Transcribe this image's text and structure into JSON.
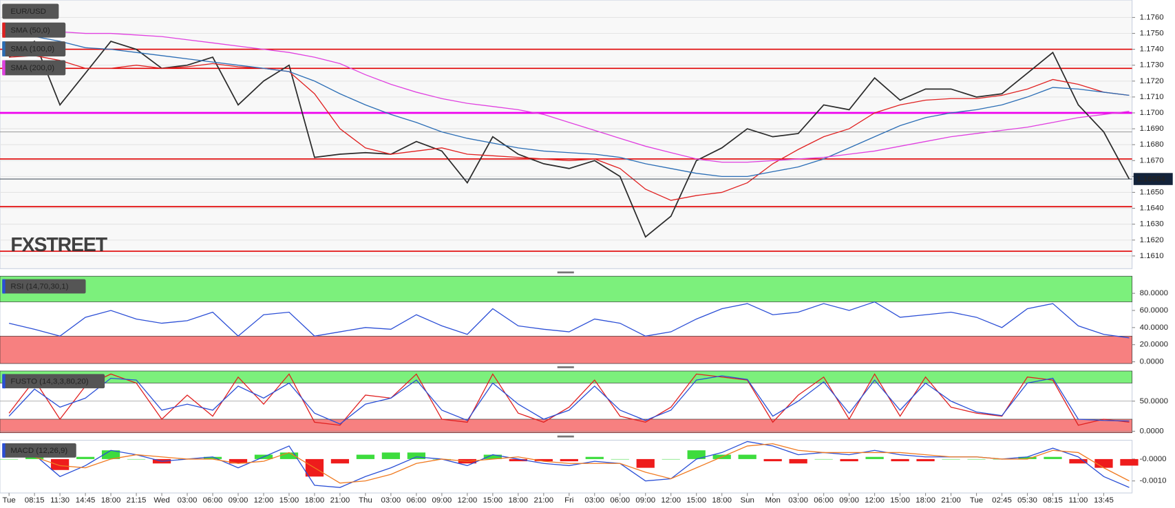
{
  "chart_data": [
    {
      "type": "line",
      "watermark": "FXSTREET",
      "categories": [
        "Tue",
        "08:15",
        "11:30",
        "14:45",
        "18:00",
        "21:15",
        "Wed",
        "03:00",
        "06:00",
        "09:00",
        "12:00",
        "15:00",
        "18:00",
        "21:00",
        "Thu",
        "03:00",
        "06:00",
        "09:00",
        "12:00",
        "15:00",
        "18:00",
        "21:00",
        "Fri",
        "03:00",
        "06:00",
        "09:00",
        "12:00",
        "15:00",
        "18:00",
        "Sun",
        "Mon",
        "03:00",
        "06:00",
        "09:00",
        "12:00",
        "15:00",
        "18:00",
        "21:00",
        "Tue",
        "02:45",
        "05:30",
        "08:15",
        "11:00",
        "13:45",
        null
      ],
      "series": [
        {
          "name": "EUR/USD",
          "color": "#2b2b2b",
          "values": [
            1.1735,
            1.1745,
            1.1705,
            1.1725,
            1.1745,
            1.174,
            1.1728,
            1.173,
            1.1735,
            1.1705,
            1.172,
            1.173,
            1.1672,
            1.1674,
            1.1675,
            1.1674,
            1.1682,
            1.1676,
            1.1656,
            1.1685,
            1.1674,
            1.1668,
            1.1665,
            1.167,
            1.166,
            1.1622,
            1.1635,
            1.167,
            1.1678,
            1.169,
            1.1685,
            1.1687,
            1.1705,
            1.1702,
            1.1722,
            1.1708,
            1.1715,
            1.1715,
            1.171,
            1.1712,
            1.1725,
            1.1738,
            1.1705,
            1.1688,
            1.16584
          ]
        },
        {
          "name": "SMA (50,0)",
          "color": "#e02020",
          "values": [
            1.1735,
            1.1736,
            1.1733,
            1.1728,
            1.1728,
            1.173,
            1.1728,
            1.1729,
            1.1731,
            1.1729,
            1.1728,
            1.1726,
            1.1712,
            1.169,
            1.1678,
            1.1674,
            1.1676,
            1.1678,
            1.1674,
            1.1673,
            1.1672,
            1.1671,
            1.167,
            1.1671,
            1.1665,
            1.1652,
            1.1645,
            1.1648,
            1.165,
            1.1656,
            1.1668,
            1.1677,
            1.1685,
            1.169,
            1.17,
            1.1705,
            1.1708,
            1.1709,
            1.1709,
            1.1711,
            1.1715,
            1.1721,
            1.1718,
            1.1713,
            1.1711
          ]
        },
        {
          "name": "SMA (100,0)",
          "color": "#2a6db5",
          "values": [
            1.1749,
            1.1748,
            1.1745,
            1.1741,
            1.174,
            1.1738,
            1.1736,
            1.1734,
            1.1732,
            1.173,
            1.1728,
            1.1726,
            1.172,
            1.1712,
            1.1705,
            1.1699,
            1.1694,
            1.1688,
            1.1684,
            1.1681,
            1.1678,
            1.1676,
            1.1675,
            1.1674,
            1.1672,
            1.1668,
            1.1665,
            1.1662,
            1.166,
            1.166,
            1.1663,
            1.1666,
            1.1671,
            1.1678,
            1.1685,
            1.1692,
            1.1697,
            1.17,
            1.1702,
            1.1705,
            1.171,
            1.1716,
            1.1715,
            1.1713,
            1.1711
          ]
        },
        {
          "name": "SMA (200,0)",
          "color": "#e040e0",
          "values": [
            1.1753,
            1.1752,
            1.1751,
            1.175,
            1.175,
            1.1749,
            1.1748,
            1.1746,
            1.1744,
            1.1742,
            1.174,
            1.1738,
            1.1735,
            1.1731,
            1.1724,
            1.1718,
            1.1713,
            1.1709,
            1.1706,
            1.1704,
            1.1702,
            1.1699,
            1.1694,
            1.1689,
            1.1684,
            1.1679,
            1.1675,
            1.1671,
            1.1669,
            1.1669,
            1.167,
            1.1671,
            1.1672,
            1.1674,
            1.1676,
            1.1679,
            1.1682,
            1.1685,
            1.1687,
            1.1689,
            1.1691,
            1.1694,
            1.1697,
            1.1699,
            1.1701
          ]
        }
      ],
      "hlines": [
        {
          "value": 1.174,
          "color": "#e00000"
        },
        {
          "value": 1.1728,
          "color": "#e00000"
        },
        {
          "value": 1.17,
          "color": "#ee00ee"
        },
        {
          "value": 1.1688,
          "color": "#888888"
        },
        {
          "value": 1.1671,
          "color": "#e00000"
        },
        {
          "value": 1.1641,
          "color": "#e00000"
        },
        {
          "value": 1.1613,
          "color": "#e00000"
        }
      ],
      "last_value": 1.16584,
      "ylim": [
        1.1602,
        1.1771
      ],
      "yticks": [
        {
          "value": 1.161,
          "label": "1.1610"
        },
        {
          "value": 1.162,
          "label": "1.1620"
        },
        {
          "value": 1.163,
          "label": "1.1630"
        },
        {
          "value": 1.164,
          "label": "1.1640"
        },
        {
          "value": 1.165,
          "label": "1.1650"
        },
        {
          "value": 1.166,
          "label": "1.1660"
        },
        {
          "value": 1.167,
          "label": "1.1670"
        },
        {
          "value": 1.168,
          "label": "1.1680"
        },
        {
          "value": 1.169,
          "label": "1.1690"
        },
        {
          "value": 1.17,
          "label": "1.1700"
        },
        {
          "value": 1.171,
          "label": "1.1710"
        },
        {
          "value": 1.172,
          "label": "1.1720"
        },
        {
          "value": 1.173,
          "label": "1.1730"
        },
        {
          "value": 1.174,
          "label": "1.1740"
        },
        {
          "value": 1.175,
          "label": "1.1750"
        },
        {
          "value": 1.176,
          "label": "1.1760"
        }
      ],
      "grid": true
    },
    {
      "type": "line",
      "title": "RSI (14,70,30,1)",
      "series": [
        {
          "color": "#2c4fd6",
          "values": [
            45,
            38,
            30,
            52,
            60,
            50,
            45,
            48,
            58,
            30,
            55,
            58,
            30,
            35,
            40,
            38,
            55,
            42,
            32,
            62,
            42,
            38,
            35,
            50,
            45,
            30,
            35,
            50,
            62,
            68,
            55,
            58,
            68,
            60,
            70,
            52,
            55,
            58,
            52,
            40,
            62,
            68,
            42,
            32,
            28
          ]
        }
      ],
      "zones": [
        {
          "from": 70,
          "to": 100,
          "color": "#7cf07c"
        },
        {
          "from": -2,
          "to": 30,
          "color": "#f78080"
        }
      ],
      "ylim": [
        -2,
        100
      ],
      "yticks": [
        {
          "value": 0,
          "label": "0.0000"
        },
        {
          "value": 20,
          "label": "20.0000"
        },
        {
          "value": 40,
          "label": "40.0000"
        },
        {
          "value": 60,
          "label": "60.0000"
        },
        {
          "value": 80,
          "label": "80.0000"
        }
      ],
      "grid": false
    },
    {
      "type": "line",
      "title": "FUSTO (14,3,3,80,20)",
      "series": [
        {
          "color": "#e02020",
          "values": [
            30,
            85,
            20,
            75,
            95,
            80,
            20,
            60,
            25,
            90,
            45,
            95,
            15,
            10,
            60,
            55,
            95,
            20,
            15,
            95,
            30,
            15,
            40,
            85,
            25,
            15,
            40,
            95,
            90,
            85,
            15,
            60,
            90,
            20,
            95,
            25,
            90,
            40,
            30,
            25,
            90,
            85,
            10,
            20,
            15
          ]
        },
        {
          "color": "#2a4fd6",
          "values": [
            25,
            70,
            40,
            55,
            88,
            85,
            35,
            45,
            35,
            75,
            55,
            80,
            30,
            12,
            45,
            55,
            85,
            35,
            18,
            80,
            45,
            20,
            35,
            75,
            35,
            18,
            35,
            85,
            92,
            86,
            25,
            50,
            82,
            30,
            85,
            35,
            80,
            50,
            32,
            26,
            80,
            88,
            20,
            18,
            17
          ]
        }
      ],
      "zones": [
        {
          "from": 80,
          "to": 100,
          "color": "#7cf07c"
        },
        {
          "from": -2.5,
          "to": 20,
          "color": "#f78080"
        }
      ],
      "ylim": [
        -2.5,
        100
      ],
      "yticks": [
        {
          "value": 0,
          "label": "0.0000"
        },
        {
          "value": 50,
          "label": "50.0000"
        }
      ],
      "grid": true
    },
    {
      "type": "line",
      "title": "MACD (12,26,9)",
      "series": [
        {
          "type": "bar",
          "positive_color": "#3ddc3d",
          "negative_color": "#ee1c1c",
          "values": [
            0,
            0.0001,
            -0.0005,
            0.0001,
            0.0004,
            0,
            -0.0002,
            0,
            0.0001,
            -0.0002,
            0.0002,
            0.0003,
            -0.0008,
            -0.0002,
            0.0002,
            0.0003,
            0.0003,
            0,
            -0.0002,
            0.0002,
            -0.0001,
            -0.0001,
            -0.0001,
            0.0001,
            0,
            -0.0004,
            0,
            0.0004,
            0.0002,
            0.0002,
            -0.0001,
            -0.0002,
            0,
            -0.0001,
            0.0001,
            -0.0001,
            -0.0001,
            0,
            0,
            0,
            0.0001,
            0.0001,
            -0.0002,
            -0.0004,
            -0.0003
          ]
        },
        {
          "color": "#2a4fd6",
          "values": [
            0.0001,
            0.0002,
            -0.0008,
            -0.0003,
            0.0004,
            0.0002,
            -0.0001,
            0,
            0.0001,
            -0.0004,
            0.0001,
            0.0006,
            -0.0012,
            -0.0013,
            -0.0008,
            -0.0004,
            0.0001,
            0,
            -0.0003,
            0.0002,
            0,
            -0.0002,
            -0.0003,
            -0.0001,
            -0.0002,
            -0.001,
            -0.0009,
            0,
            0.0003,
            0.0008,
            0.0006,
            0.0002,
            0.0003,
            0.0002,
            0.0004,
            0.0002,
            0.0001,
            0.0001,
            0.0001,
            0,
            0.0001,
            0.0005,
            0.0001,
            -0.0008,
            -0.0013
          ]
        },
        {
          "color": "#f07a20",
          "values": [
            0.0001,
            0.0001,
            -0.0003,
            -0.0004,
            0,
            0.0002,
            0.0001,
            0,
            0,
            -0.0002,
            -0.0001,
            0.0003,
            -0.0004,
            -0.0011,
            -0.001,
            -0.0007,
            -0.0002,
            0,
            -0.0001,
            0,
            0.0001,
            -0.0001,
            -0.0002,
            -0.0002,
            -0.0002,
            -0.0006,
            -0.0009,
            -0.0004,
            0.0001,
            0.0006,
            0.0007,
            0.0004,
            0.0003,
            0.0003,
            0.0003,
            0.0003,
            0.0002,
            0.0001,
            0.0001,
            0,
            0,
            0.0004,
            0.0003,
            -0.0004,
            -0.001
          ]
        }
      ],
      "ylim": [
        -0.00155,
        0.00086
      ],
      "yticks": [
        {
          "value": 0,
          "label": "-0.0000"
        },
        {
          "value": -0.001,
          "label": "-0.0010"
        }
      ],
      "grid": false
    }
  ]
}
